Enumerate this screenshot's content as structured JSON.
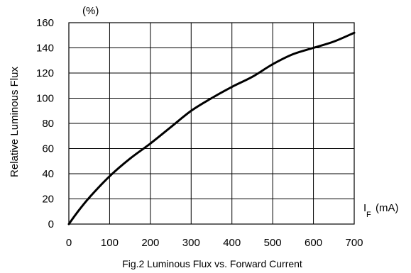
{
  "chart_data": {
    "type": "line",
    "caption": "Fig.2 Luminous Flux vs. Forward Current",
    "ylabel": "Relative Luminous Flux",
    "yunit": "(%)",
    "xlabel_main": "I",
    "xlabel_sub": "F",
    "xlabel_unit": "(mA)",
    "xlim": [
      0,
      700
    ],
    "ylim": [
      0,
      160
    ],
    "xticks": [
      0,
      100,
      200,
      300,
      400,
      500,
      600,
      700
    ],
    "yticks": [
      0,
      20,
      40,
      60,
      80,
      100,
      120,
      140,
      160
    ],
    "grid": true,
    "series": [
      {
        "x": [
          0,
          20,
          50,
          100,
          150,
          200,
          250,
          300,
          350,
          400,
          450,
          500,
          550,
          600,
          650,
          700
        ],
        "values": [
          0,
          9,
          21,
          38,
          52,
          64,
          77,
          90,
          100,
          109,
          117,
          127,
          135,
          140,
          145,
          152
        ]
      }
    ]
  }
}
